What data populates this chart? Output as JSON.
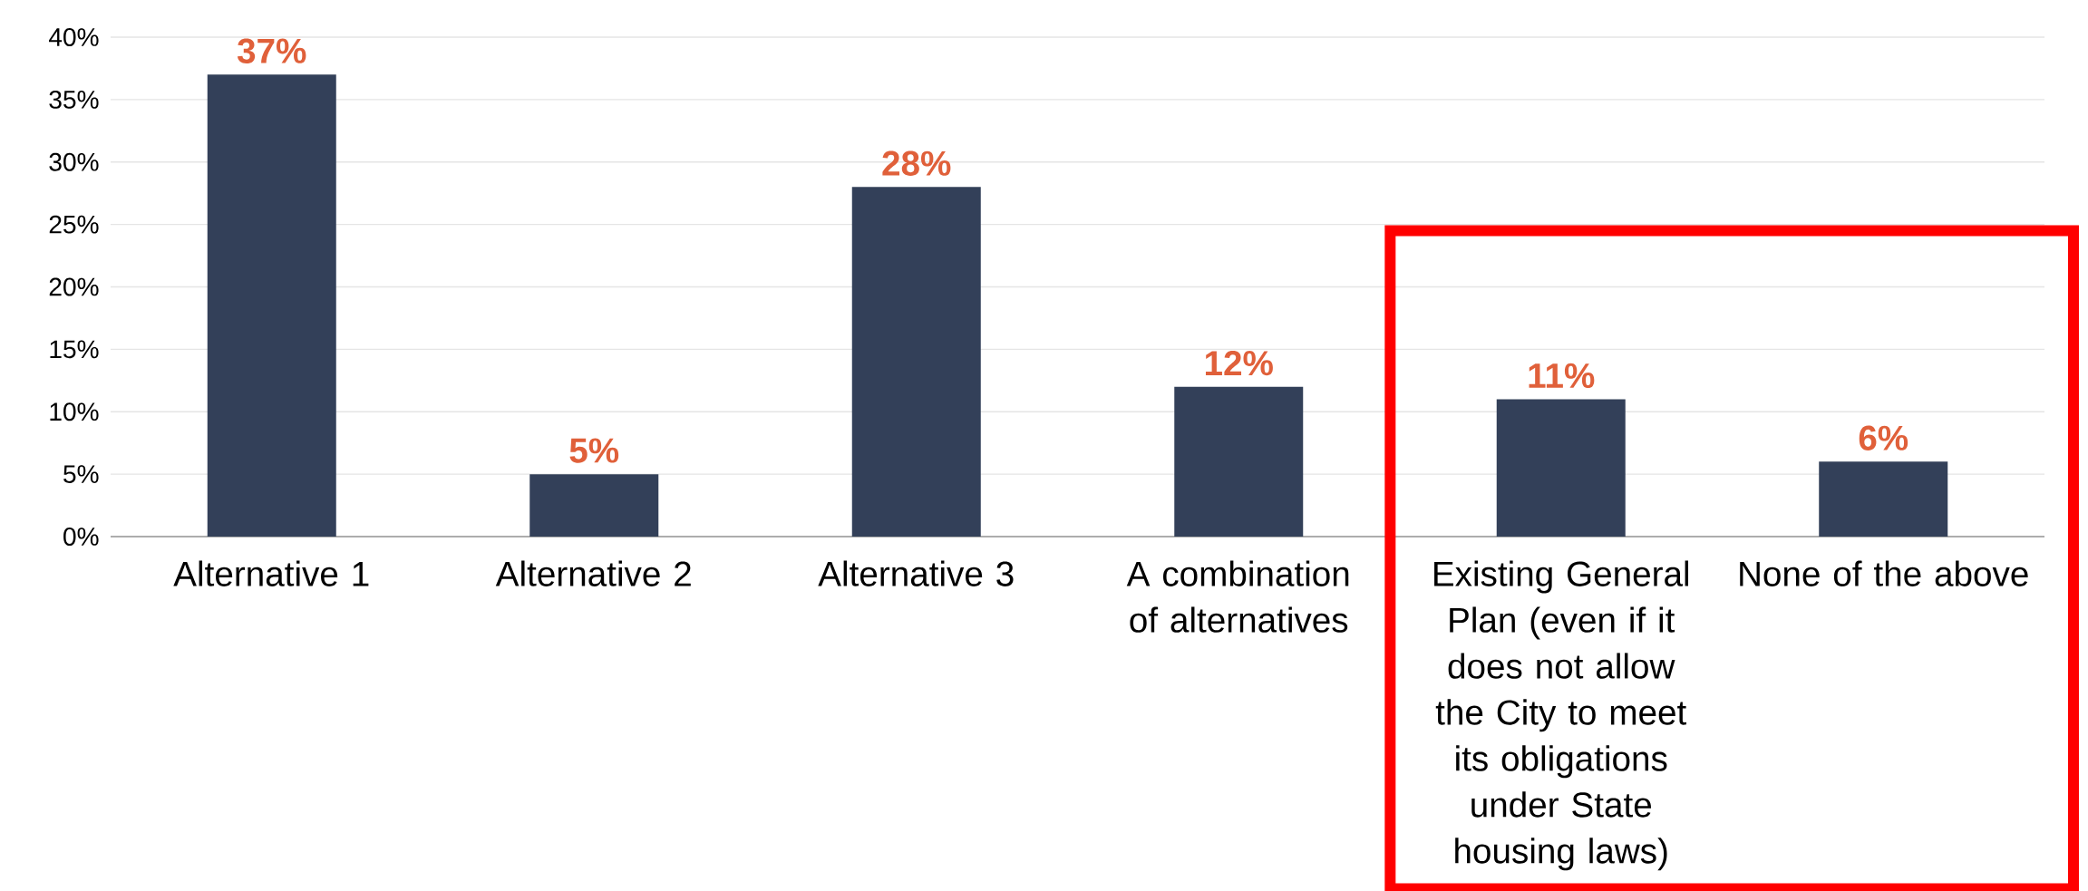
{
  "chart_data": {
    "type": "bar",
    "categories": [
      "Alternative 1",
      "Alternative 2",
      "Alternative 3",
      "A combination of alternatives",
      "Existing General Plan (even if it does not allow the City to meet its obligations under State housing laws)",
      "None of the above"
    ],
    "values": [
      37,
      5,
      28,
      12,
      11,
      6
    ],
    "color": "#334059",
    "data_labels": true,
    "value_labels": [
      "37%",
      "5%",
      "28%",
      "12%",
      "11%",
      "6%"
    ],
    "ylim": [
      0,
      40
    ],
    "yticks": [
      {
        "value": 0,
        "label": "0%"
      },
      {
        "value": 5,
        "label": "5%"
      },
      {
        "value": 10,
        "label": "10%"
      },
      {
        "value": 15,
        "label": "15%"
      },
      {
        "value": 20,
        "label": "20%"
      },
      {
        "value": 25,
        "label": "25%"
      },
      {
        "value": 30,
        "label": "30%"
      },
      {
        "value": 35,
        "label": "35%"
      },
      {
        "value": 40,
        "label": "40%"
      }
    ],
    "grid": "y"
  }
}
